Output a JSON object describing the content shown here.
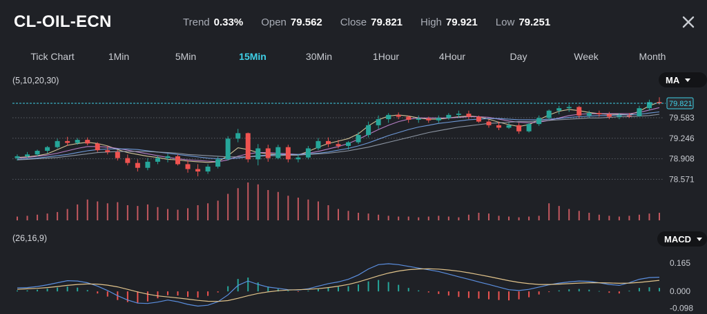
{
  "symbol": "CL-OIL-ECN",
  "stats": [
    {
      "label": "Trend",
      "value": "0.33%"
    },
    {
      "label": "Open",
      "value": "79.562"
    },
    {
      "label": "Close",
      "value": "79.821"
    },
    {
      "label": "High",
      "value": "79.921"
    },
    {
      "label": "Low",
      "value": "79.251"
    }
  ],
  "timeframes": [
    "Tick Chart",
    "1Min",
    "5Min",
    "15Min",
    "30Min",
    "1Hour",
    "4Hour",
    "Day",
    "Week",
    "Month"
  ],
  "active_timeframe": "15Min",
  "indicators": {
    "ma_params": "(5,10,20,30)",
    "ma_label": "MA",
    "macd_params": "(26,16,9)",
    "macd_label": "MACD"
  },
  "colors": {
    "up": "#26a69a",
    "down": "#ef5350",
    "accent": "#3fd1e8",
    "background": "#1f2126"
  },
  "chart_data": [
    {
      "type": "candlestick",
      "title": "",
      "y_ticks": [
        "79.583",
        "79.246",
        "78.908",
        "78.571"
      ],
      "ylim": [
        78.44,
        80.07
      ],
      "current_price": "79.821",
      "ma_series": [
        {
          "values": [
            78.93,
            78.94,
            78.96,
            78.99,
            79.06,
            79.13,
            79.16,
            79.18,
            79.16,
            79.12,
            79.06,
            79.01,
            78.98,
            78.95,
            78.93,
            78.9,
            78.89,
            78.87,
            78.86,
            78.85,
            78.86,
            78.96,
            79.09,
            79.06,
            79.01,
            78.99,
            78.98,
            78.97,
            78.97,
            79.03,
            79.1,
            79.16,
            79.2,
            79.24,
            79.32,
            79.45,
            79.55,
            79.61,
            79.63,
            79.61,
            79.58,
            79.56,
            79.56,
            79.58,
            79.6,
            79.61,
            79.6,
            79.56,
            79.51,
            79.47,
            79.44,
            79.47,
            79.55,
            79.63,
            79.69,
            79.72,
            79.7,
            79.67,
            79.65,
            79.64,
            79.64,
            79.63,
            79.69,
            79.78,
            79.84
          ]
        },
        {
          "values": [
            78.92,
            78.93,
            78.95,
            78.97,
            79.0,
            79.04,
            79.08,
            79.11,
            79.11,
            79.1,
            79.08,
            79.05,
            79.02,
            78.99,
            78.96,
            78.93,
            78.91,
            78.89,
            78.88,
            78.87,
            78.86,
            78.89,
            78.95,
            78.99,
            79.01,
            79.01,
            79.0,
            78.99,
            78.98,
            79.0,
            79.03,
            79.07,
            79.11,
            79.16,
            79.23,
            79.31,
            79.39,
            79.46,
            79.52,
            79.56,
            79.58,
            79.58,
            79.58,
            79.58,
            79.59,
            79.6,
            79.6,
            79.59,
            79.56,
            79.53,
            79.51,
            79.5,
            79.51,
            79.54,
            79.58,
            79.62,
            79.64,
            79.65,
            79.65,
            79.65,
            79.65,
            79.65,
            79.67,
            79.71,
            79.75
          ]
        },
        {
          "values": [
            78.9,
            78.91,
            78.92,
            78.94,
            78.96,
            78.98,
            79.01,
            79.04,
            79.06,
            79.07,
            79.07,
            79.07,
            79.06,
            79.04,
            79.02,
            79.0,
            78.98,
            78.96,
            78.94,
            78.92,
            78.91,
            78.91,
            78.92,
            78.94,
            78.96,
            78.97,
            78.98,
            78.98,
            78.98,
            78.99,
            79.0,
            79.02,
            79.05,
            79.08,
            79.12,
            79.17,
            79.23,
            79.29,
            79.34,
            79.39,
            79.43,
            79.46,
            79.49,
            79.51,
            79.53,
            79.55,
            79.56,
            79.57,
            79.57,
            79.56,
            79.55,
            79.55,
            79.55,
            79.56,
            79.57,
            79.59,
            79.6,
            79.61,
            79.62,
            79.62,
            79.63,
            79.63,
            79.64,
            79.66,
            79.68
          ]
        },
        {
          "values": [
            78.89,
            78.9,
            78.91,
            78.92,
            78.93,
            78.95,
            78.97,
            78.99,
            79.01,
            79.02,
            79.03,
            79.03,
            79.03,
            79.03,
            79.02,
            79.01,
            79.0,
            78.98,
            78.97,
            78.96,
            78.95,
            78.94,
            78.94,
            78.94,
            78.95,
            78.96,
            78.96,
            78.97,
            78.97,
            78.98,
            78.99,
            79.0,
            79.02,
            79.04,
            79.07,
            79.1,
            79.14,
            79.18,
            79.22,
            79.26,
            79.3,
            79.34,
            79.37,
            79.4,
            79.43,
            79.45,
            79.47,
            79.49,
            79.5,
            79.51,
            79.52,
            79.52,
            79.53,
            79.54,
            79.55,
            79.56,
            79.57,
            79.58,
            79.58,
            79.59,
            79.6,
            79.6,
            79.61,
            79.62,
            79.64
          ]
        }
      ],
      "candles": [
        {
          "o": 78.92,
          "h": 78.98,
          "l": 78.88,
          "c": 78.95
        },
        {
          "o": 78.95,
          "h": 79.02,
          "l": 78.92,
          "c": 78.98
        },
        {
          "o": 78.98,
          "h": 79.06,
          "l": 78.95,
          "c": 79.04
        },
        {
          "o": 79.04,
          "h": 79.12,
          "l": 79.0,
          "c": 79.1
        },
        {
          "o": 79.1,
          "h": 79.24,
          "l": 79.08,
          "c": 79.2
        },
        {
          "o": 79.2,
          "h": 79.27,
          "l": 79.12,
          "c": 79.17
        },
        {
          "o": 79.17,
          "h": 79.25,
          "l": 79.14,
          "c": 79.22
        },
        {
          "o": 79.22,
          "h": 79.26,
          "l": 79.13,
          "c": 79.16
        },
        {
          "o": 79.16,
          "h": 79.18,
          "l": 79.02,
          "c": 79.05
        },
        {
          "o": 79.05,
          "h": 79.12,
          "l": 78.98,
          "c": 79.02
        },
        {
          "o": 79.02,
          "h": 79.05,
          "l": 78.88,
          "c": 78.92
        },
        {
          "o": 78.92,
          "h": 78.98,
          "l": 78.8,
          "c": 78.84
        },
        {
          "o": 78.84,
          "h": 78.9,
          "l": 78.7,
          "c": 78.76
        },
        {
          "o": 78.76,
          "h": 78.92,
          "l": 78.72,
          "c": 78.86
        },
        {
          "o": 78.86,
          "h": 78.96,
          "l": 78.82,
          "c": 78.92
        },
        {
          "o": 78.92,
          "h": 78.99,
          "l": 78.85,
          "c": 78.95
        },
        {
          "o": 78.95,
          "h": 78.98,
          "l": 78.8,
          "c": 78.82
        },
        {
          "o": 78.82,
          "h": 78.88,
          "l": 78.68,
          "c": 78.74
        },
        {
          "o": 78.74,
          "h": 78.82,
          "l": 78.62,
          "c": 78.7
        },
        {
          "o": 78.7,
          "h": 78.82,
          "l": 78.66,
          "c": 78.78
        },
        {
          "o": 78.78,
          "h": 78.94,
          "l": 78.75,
          "c": 78.9
        },
        {
          "o": 78.9,
          "h": 79.28,
          "l": 78.88,
          "c": 79.24
        },
        {
          "o": 79.24,
          "h": 79.4,
          "l": 79.18,
          "c": 79.33
        },
        {
          "o": 79.33,
          "h": 79.34,
          "l": 78.85,
          "c": 78.9
        },
        {
          "o": 78.9,
          "h": 79.15,
          "l": 78.8,
          "c": 79.08
        },
        {
          "o": 79.08,
          "h": 79.14,
          "l": 78.86,
          "c": 78.92
        },
        {
          "o": 78.92,
          "h": 79.14,
          "l": 78.9,
          "c": 79.1
        },
        {
          "o": 79.1,
          "h": 79.14,
          "l": 78.85,
          "c": 78.9
        },
        {
          "o": 78.9,
          "h": 78.98,
          "l": 78.85,
          "c": 78.93
        },
        {
          "o": 78.93,
          "h": 79.12,
          "l": 78.9,
          "c": 79.08
        },
        {
          "o": 79.08,
          "h": 79.25,
          "l": 79.05,
          "c": 79.2
        },
        {
          "o": 79.2,
          "h": 79.26,
          "l": 79.1,
          "c": 79.15
        },
        {
          "o": 79.15,
          "h": 79.22,
          "l": 79.08,
          "c": 79.12
        },
        {
          "o": 79.12,
          "h": 79.2,
          "l": 79.06,
          "c": 79.18
        },
        {
          "o": 79.18,
          "h": 79.35,
          "l": 79.15,
          "c": 79.3
        },
        {
          "o": 79.3,
          "h": 79.52,
          "l": 79.26,
          "c": 79.46
        },
        {
          "o": 79.46,
          "h": 79.62,
          "l": 79.4,
          "c": 79.56
        },
        {
          "o": 79.56,
          "h": 79.66,
          "l": 79.5,
          "c": 79.63
        },
        {
          "o": 79.63,
          "h": 79.67,
          "l": 79.56,
          "c": 79.6
        },
        {
          "o": 79.6,
          "h": 79.62,
          "l": 79.5,
          "c": 79.55
        },
        {
          "o": 79.55,
          "h": 79.62,
          "l": 79.5,
          "c": 79.57
        },
        {
          "o": 79.57,
          "h": 79.6,
          "l": 79.5,
          "c": 79.54
        },
        {
          "o": 79.54,
          "h": 79.62,
          "l": 79.5,
          "c": 79.58
        },
        {
          "o": 79.58,
          "h": 79.66,
          "l": 79.55,
          "c": 79.63
        },
        {
          "o": 79.63,
          "h": 79.7,
          "l": 79.58,
          "c": 79.65
        },
        {
          "o": 79.65,
          "h": 79.7,
          "l": 79.56,
          "c": 79.6
        },
        {
          "o": 79.6,
          "h": 79.62,
          "l": 79.5,
          "c": 79.52
        },
        {
          "o": 79.52,
          "h": 79.56,
          "l": 79.42,
          "c": 79.46
        },
        {
          "o": 79.46,
          "h": 79.52,
          "l": 79.38,
          "c": 79.42
        },
        {
          "o": 79.42,
          "h": 79.5,
          "l": 79.4,
          "c": 79.46
        },
        {
          "o": 79.46,
          "h": 79.5,
          "l": 79.32,
          "c": 79.36
        },
        {
          "o": 79.36,
          "h": 79.5,
          "l": 79.34,
          "c": 79.48
        },
        {
          "o": 79.48,
          "h": 79.62,
          "l": 79.45,
          "c": 79.58
        },
        {
          "o": 79.58,
          "h": 79.72,
          "l": 79.55,
          "c": 79.7
        },
        {
          "o": 79.7,
          "h": 79.78,
          "l": 79.64,
          "c": 79.74
        },
        {
          "o": 79.74,
          "h": 79.8,
          "l": 79.68,
          "c": 79.76
        },
        {
          "o": 79.76,
          "h": 79.78,
          "l": 79.58,
          "c": 79.62
        },
        {
          "o": 79.62,
          "h": 79.7,
          "l": 79.58,
          "c": 79.66
        },
        {
          "o": 79.66,
          "h": 79.7,
          "l": 79.6,
          "c": 79.64
        },
        {
          "o": 79.64,
          "h": 79.68,
          "l": 79.56,
          "c": 79.6
        },
        {
          "o": 79.6,
          "h": 79.66,
          "l": 79.56,
          "c": 79.62
        },
        {
          "o": 79.62,
          "h": 79.66,
          "l": 79.58,
          "c": 79.61
        },
        {
          "o": 79.61,
          "h": 79.78,
          "l": 79.6,
          "c": 79.74
        },
        {
          "o": 79.74,
          "h": 79.88,
          "l": 79.7,
          "c": 79.84
        },
        {
          "o": 79.84,
          "h": 79.92,
          "l": 79.8,
          "c": 79.82
        }
      ],
      "volume": [
        0.1,
        0.12,
        0.15,
        0.18,
        0.22,
        0.3,
        0.42,
        0.55,
        0.5,
        0.45,
        0.48,
        0.4,
        0.38,
        0.42,
        0.35,
        0.3,
        0.28,
        0.32,
        0.4,
        0.45,
        0.52,
        0.7,
        0.85,
        1.0,
        0.95,
        0.8,
        0.75,
        0.65,
        0.6,
        0.55,
        0.5,
        0.4,
        0.3,
        0.25,
        0.2,
        0.18,
        0.15,
        0.12,
        0.1,
        0.1,
        0.08,
        0.1,
        0.12,
        0.1,
        0.08,
        0.15,
        0.2,
        0.18,
        0.12,
        0.1,
        0.08,
        0.1,
        0.12,
        0.45,
        0.38,
        0.3,
        0.25,
        0.2,
        0.15,
        0.12,
        0.1,
        0.12,
        0.15,
        0.18,
        0.2
      ]
    },
    {
      "type": "macd",
      "title": "",
      "y_ticks": [
        "0.165",
        "0.000",
        "-0.098"
      ],
      "ylim": [
        -0.115,
        0.22
      ],
      "macd_line": [
        0.02,
        0.022,
        0.028,
        0.038,
        0.05,
        0.062,
        0.06,
        0.05,
        0.03,
        0.005,
        -0.025,
        -0.05,
        -0.068,
        -0.07,
        -0.062,
        -0.05,
        -0.06,
        -0.075,
        -0.085,
        -0.08,
        -0.06,
        -0.02,
        0.035,
        0.06,
        0.04,
        0.025,
        0.018,
        0.01,
        0.008,
        0.015,
        0.03,
        0.045,
        0.055,
        0.07,
        0.095,
        0.13,
        0.155,
        0.16,
        0.155,
        0.145,
        0.135,
        0.125,
        0.115,
        0.1,
        0.085,
        0.07,
        0.055,
        0.04,
        0.025,
        0.01,
        0.005,
        0.012,
        0.025,
        0.038,
        0.048,
        0.055,
        0.06,
        0.058,
        0.05,
        0.04,
        0.035,
        0.05,
        0.07,
        0.08,
        0.082
      ],
      "signal_line": [
        0.012,
        0.015,
        0.018,
        0.022,
        0.028,
        0.035,
        0.04,
        0.043,
        0.042,
        0.036,
        0.026,
        0.012,
        -0.003,
        -0.016,
        -0.026,
        -0.032,
        -0.038,
        -0.045,
        -0.052,
        -0.057,
        -0.058,
        -0.053,
        -0.04,
        -0.025,
        -0.012,
        -0.003,
        0.004,
        0.008,
        0.01,
        0.012,
        0.016,
        0.022,
        0.03,
        0.04,
        0.055,
        0.072,
        0.09,
        0.106,
        0.118,
        0.126,
        0.13,
        0.131,
        0.129,
        0.124,
        0.117,
        0.108,
        0.097,
        0.086,
        0.074,
        0.062,
        0.052,
        0.045,
        0.04,
        0.04,
        0.042,
        0.045,
        0.048,
        0.05,
        0.05,
        0.049,
        0.047,
        0.048,
        0.052,
        0.058,
        0.064
      ],
      "histogram": [
        0.005,
        0.006,
        0.01,
        0.016,
        0.022,
        0.028,
        0.022,
        0.008,
        -0.012,
        -0.03,
        -0.05,
        -0.062,
        -0.066,
        -0.058,
        -0.04,
        -0.022,
        -0.024,
        -0.032,
        -0.036,
        -0.026,
        -0.006,
        0.03,
        0.072,
        0.08,
        0.052,
        0.028,
        0.014,
        0.004,
        -0.002,
        0.004,
        0.014,
        0.024,
        0.026,
        0.03,
        0.04,
        0.058,
        0.066,
        0.054,
        0.038,
        0.02,
        0.006,
        -0.006,
        -0.015,
        -0.024,
        -0.032,
        -0.038,
        -0.042,
        -0.046,
        -0.05,
        -0.052,
        -0.046,
        -0.034,
        -0.018,
        -0.004,
        0.006,
        0.012,
        0.014,
        0.01,
        0.002,
        -0.008,
        -0.012,
        0.004,
        0.02,
        0.024,
        0.02
      ]
    }
  ]
}
